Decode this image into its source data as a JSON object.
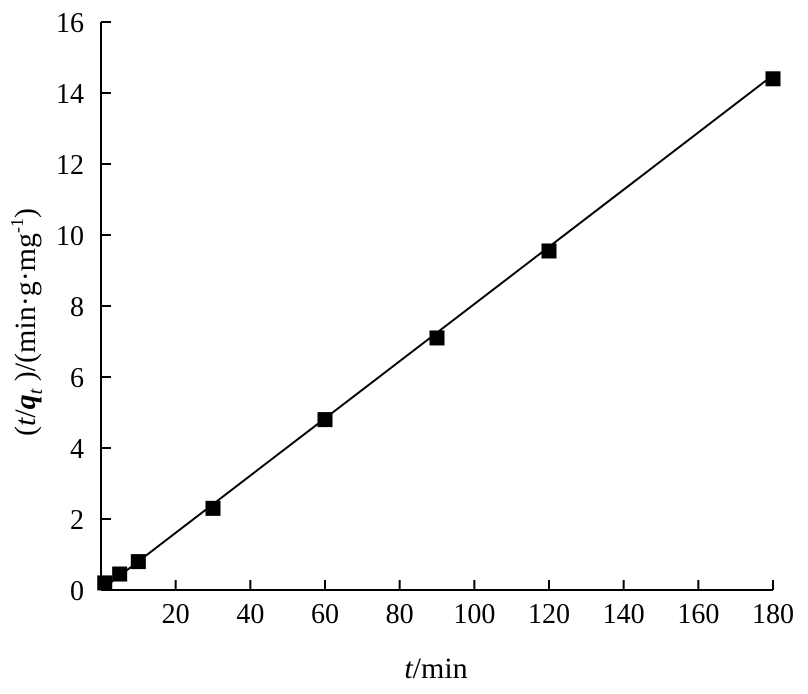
{
  "chart_data": {
    "type": "scatter",
    "title": "",
    "xlabel": {
      "var": "t",
      "rest": "/min"
    },
    "ylabel": {
      "open": "(",
      "var_t": "t",
      "slash": "/",
      "var_q": "q",
      "sub_t": "t",
      "close": " )/(min·g·mg",
      "sup": "-1",
      "end": ")"
    },
    "xlim": [
      0,
      180
    ],
    "ylim": [
      0,
      16
    ],
    "xticks": [
      "20",
      "40",
      "60",
      "80",
      "100",
      "120",
      "140",
      "160",
      "180"
    ],
    "yticks": [
      "0",
      "2",
      "4",
      "6",
      "8",
      "10",
      "12",
      "14",
      "16"
    ],
    "series": [
      {
        "marker": "square",
        "color": "#000000",
        "points": [
          {
            "x": 1,
            "y": 0.2
          },
          {
            "x": 5,
            "y": 0.45
          },
          {
            "x": 10,
            "y": 0.8
          },
          {
            "x": 30,
            "y": 2.3
          },
          {
            "x": 60,
            "y": 4.8
          },
          {
            "x": 90,
            "y": 7.1
          },
          {
            "x": 120,
            "y": 9.55
          },
          {
            "x": 180,
            "y": 14.4
          }
        ]
      }
    ],
    "fit_line": {
      "color": "#000000",
      "from": {
        "x": 0,
        "y": 0.0
      },
      "to": {
        "x": 180,
        "y": 14.5
      }
    },
    "grid": false,
    "legend": "none"
  }
}
